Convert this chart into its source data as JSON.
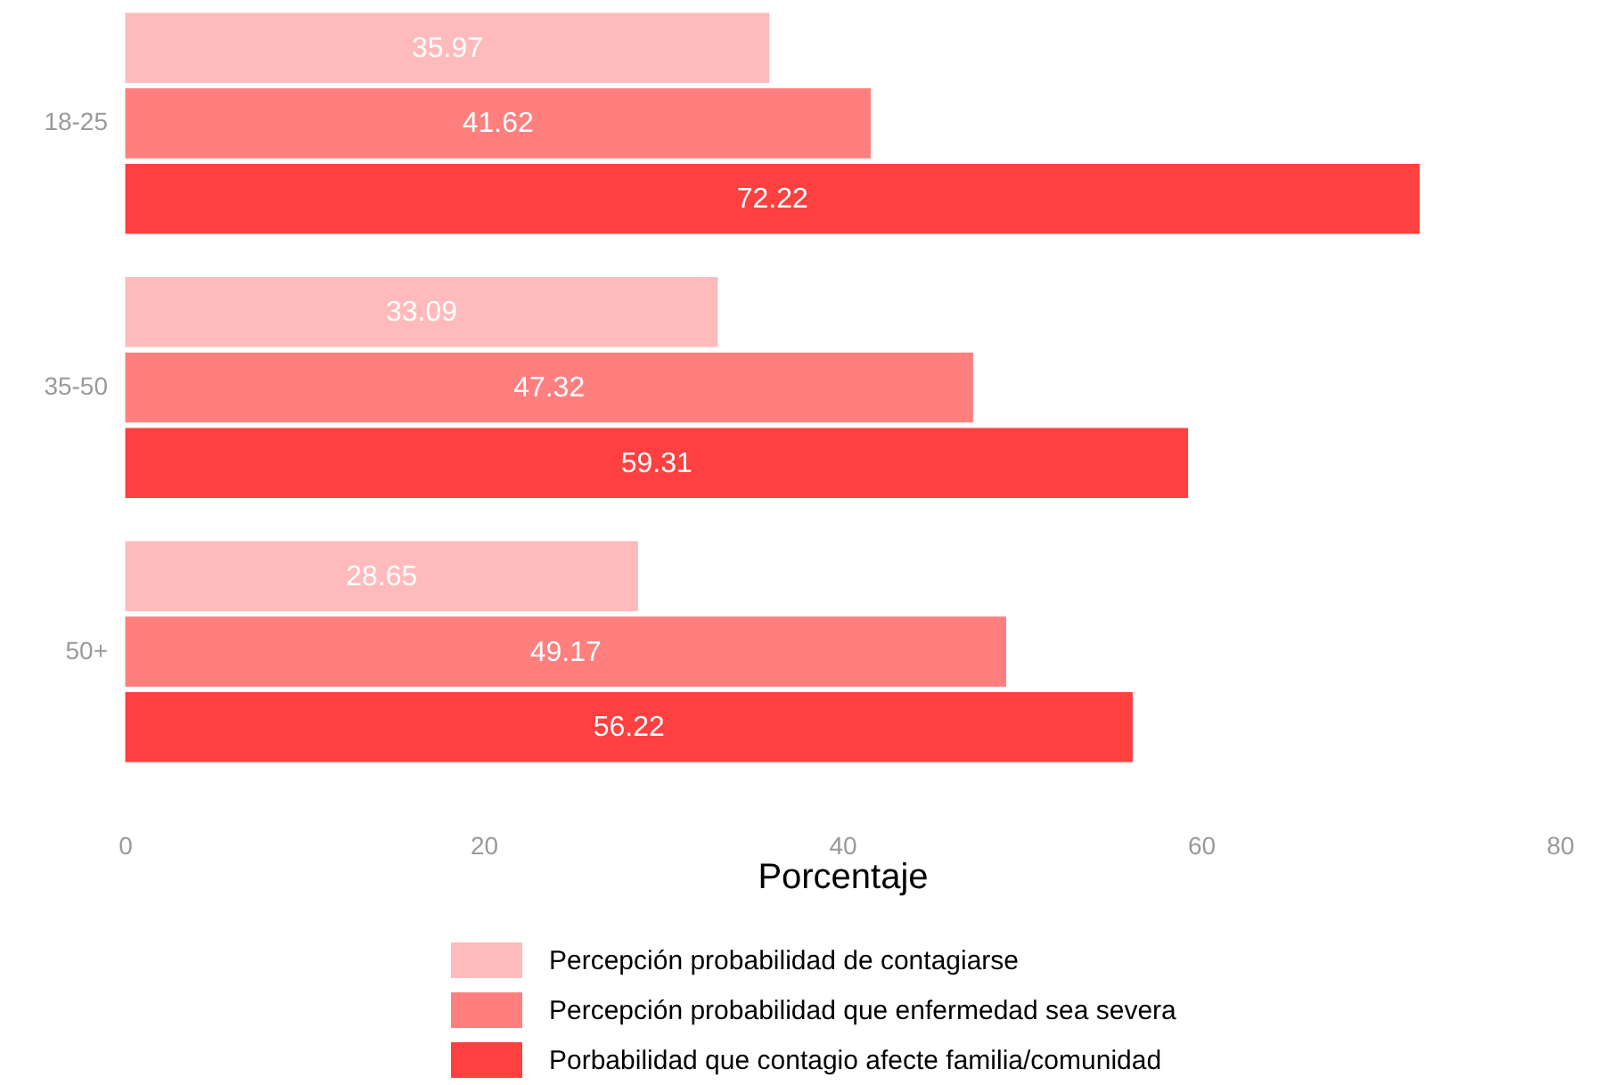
{
  "chart_data": {
    "type": "bar",
    "orientation": "horizontal",
    "categories": [
      "18-25",
      "35-50",
      "50+"
    ],
    "series": [
      {
        "name": "Percepción probabilidad de contagiarse",
        "color": "#ffbbbb",
        "values": [
          35.97,
          33.09,
          28.65
        ]
      },
      {
        "name": "Percepción probabilidad que enfermedad sea severa",
        "color": "#ff7f7f",
        "values": [
          41.62,
          47.32,
          49.17
        ]
      },
      {
        "name": "Porbabilidad que contagio afecte familia/comunidad",
        "color": "#ff4040",
        "values": [
          72.22,
          59.31,
          56.22
        ]
      }
    ],
    "xlabel": "Porcentaje",
    "xlim": [
      0,
      80
    ],
    "xticks": [
      0,
      20,
      40,
      60,
      80
    ],
    "data_labels": true,
    "legend": "bottom"
  }
}
